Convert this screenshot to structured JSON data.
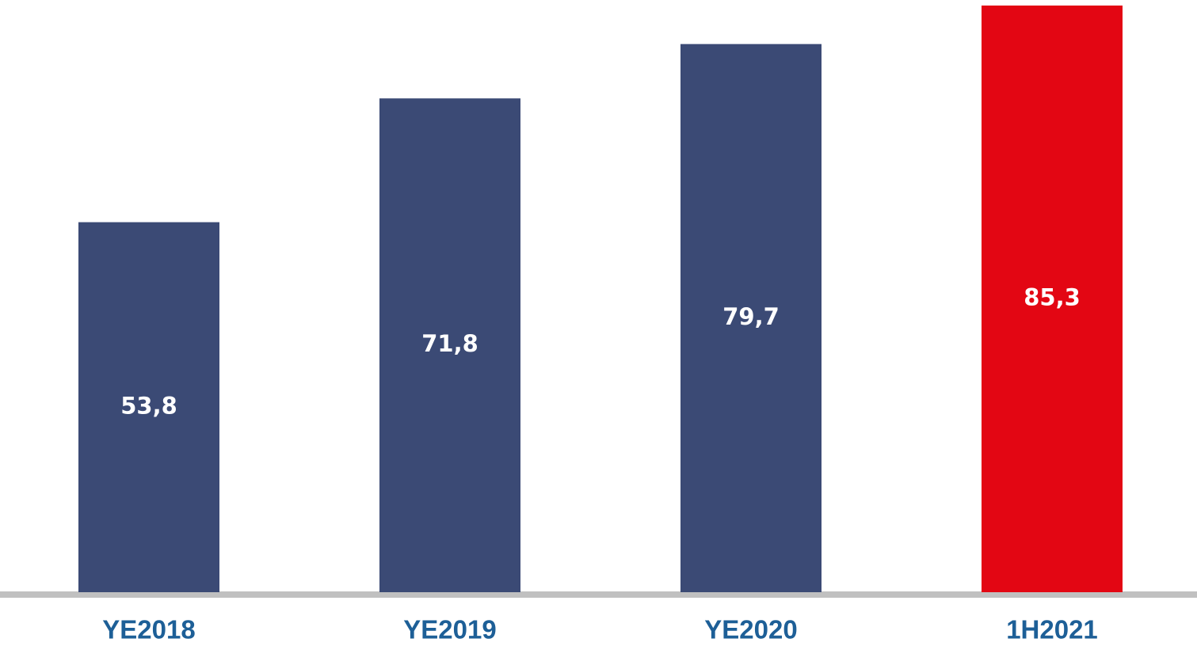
{
  "chart_data": {
    "type": "bar",
    "categories": [
      "YE2018",
      "YE2019",
      "YE2020",
      "1H2021"
    ],
    "values": [
      53.8,
      71.8,
      79.7,
      85.3
    ],
    "value_labels": [
      "53,8",
      "71,8",
      "79,7",
      "85,3"
    ],
    "colors": [
      "#3b4a75",
      "#3b4a75",
      "#3b4a75",
      "#e30613"
    ]
  }
}
